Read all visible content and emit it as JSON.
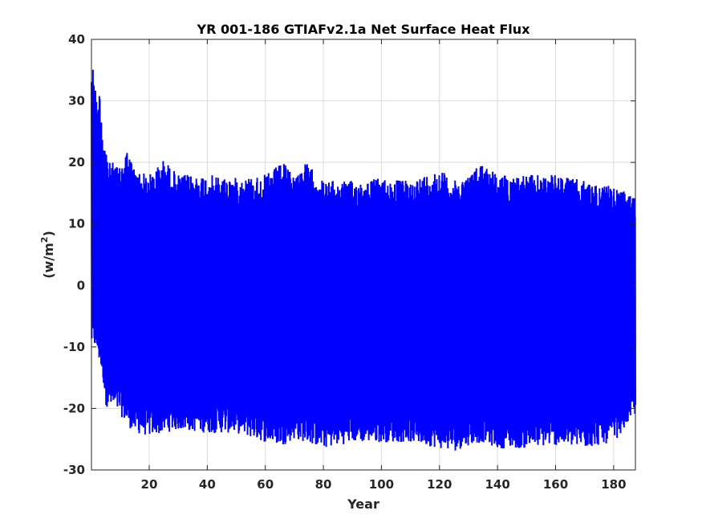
{
  "chart_data": {
    "type": "line",
    "title": "YR 001-186 GTIAFv2.1a Net Surface Heat Flux",
    "xlabel": "Year",
    "ylabel_prefix": "(w/m",
    "ylabel_sup": "2",
    "ylabel_suffix": ")",
    "xlim": [
      0.1,
      187.5
    ],
    "ylim": [
      -30,
      40
    ],
    "x_ticks": [
      20,
      40,
      60,
      80,
      100,
      120,
      140,
      160,
      180
    ],
    "y_ticks": [
      -30,
      -20,
      -10,
      0,
      10,
      20,
      30,
      40
    ],
    "grid": true,
    "series": [
      {
        "color": "#0000ff",
        "envelope": {
          "x": [
            0.1,
            1,
            2,
            3,
            4,
            5,
            6,
            8,
            10,
            12,
            15,
            20,
            25,
            30,
            40,
            50,
            60,
            66,
            70,
            74,
            80,
            90,
            100,
            110,
            120,
            125,
            130,
            135,
            140,
            150,
            160,
            170,
            180,
            187.5
          ],
          "max": [
            36,
            35.7,
            29,
            32,
            25,
            23,
            20,
            20,
            19,
            22.5,
            19,
            18,
            20.5,
            18,
            18,
            17.5,
            18,
            20,
            18,
            20,
            17,
            17,
            17.5,
            17,
            19,
            17,
            18,
            20.3,
            18,
            18,
            18,
            17,
            16,
            14.5
          ],
          "min": [
            -10,
            -10,
            -11,
            -13,
            -15,
            -19.5,
            -20,
            -20.5,
            -21,
            -22.5,
            -24,
            -24.5,
            -24,
            -23.5,
            -24,
            -24,
            -25.5,
            -26,
            -25,
            -25.5,
            -26.5,
            -25.5,
            -25.5,
            -25.5,
            -26.5,
            -27,
            -26,
            -25.5,
            -26.5,
            -26.5,
            -26,
            -26.5,
            -25.5,
            -21
          ]
        }
      }
    ]
  }
}
